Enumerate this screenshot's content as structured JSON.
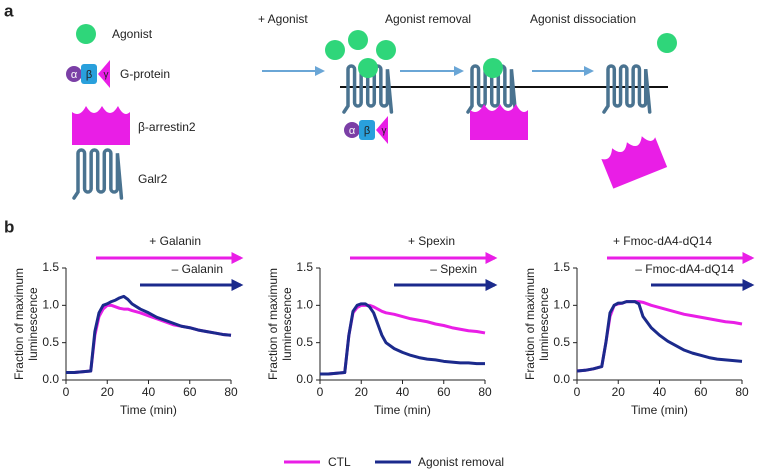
{
  "panel_a": {
    "label": "a",
    "legend_items": [
      "Agonist",
      "G-protein",
      "β-arrestin2",
      "Galr2"
    ],
    "steps": [
      "+ Agonist",
      "Agonist removal",
      "Agonist dissociation"
    ],
    "subunits": [
      "α",
      "β",
      "γ"
    ]
  },
  "panel_b": {
    "label": "b"
  },
  "chart_data": [
    {
      "type": "line",
      "annotations": [
        "+ Galanin",
        "– Galanin"
      ],
      "xlabel": "Time (min)",
      "ylabel": [
        "Fraction of maximum",
        "luminescence"
      ],
      "x": [
        0,
        4,
        8,
        12,
        14,
        16,
        18,
        20,
        22,
        24,
        26,
        28,
        30,
        32,
        36,
        40,
        44,
        48,
        52,
        56,
        60,
        64,
        68,
        72,
        76,
        80
      ],
      "series": [
        {
          "name": "CTL",
          "color": "#e91ee6",
          "values": [
            0.1,
            0.1,
            0.11,
            0.12,
            0.6,
            0.85,
            0.95,
            1.0,
            1.0,
            0.98,
            0.96,
            0.95,
            0.95,
            0.93,
            0.9,
            0.86,
            0.82,
            0.78,
            0.74,
            0.72,
            0.7,
            0.67,
            0.65,
            0.63,
            0.61,
            0.6
          ]
        },
        {
          "name": "Agonist removal",
          "color": "#1b2a8c",
          "values": [
            0.1,
            0.1,
            0.11,
            0.12,
            0.65,
            0.9,
            1.0,
            1.02,
            1.05,
            1.07,
            1.1,
            1.12,
            1.08,
            1.02,
            0.95,
            0.9,
            0.84,
            0.8,
            0.76,
            0.72,
            0.7,
            0.67,
            0.65,
            0.63,
            0.61,
            0.6
          ]
        }
      ],
      "xlim": [
        0,
        80
      ],
      "xticks": [
        0,
        20,
        40,
        60,
        80
      ],
      "ylim": [
        0,
        1.5
      ],
      "yticks": [
        {
          "value": 0,
          "label": "0.0"
        },
        0.5,
        {
          "value": 1,
          "label": "1.0"
        },
        1.5
      ]
    },
    {
      "type": "line",
      "annotations": [
        "+ Spexin",
        "– Spexin"
      ],
      "xlabel": "Time (min)",
      "ylabel": [
        "Fraction of maximum",
        "luminescence"
      ],
      "x": [
        0,
        4,
        8,
        12,
        14,
        16,
        18,
        20,
        22,
        24,
        26,
        28,
        30,
        32,
        36,
        40,
        44,
        48,
        52,
        56,
        60,
        64,
        68,
        72,
        76,
        80
      ],
      "series": [
        {
          "name": "CTL",
          "color": "#e91ee6",
          "values": [
            0.08,
            0.08,
            0.09,
            0.1,
            0.6,
            0.9,
            0.97,
            1.0,
            1.0,
            1.0,
            0.98,
            0.95,
            0.92,
            0.9,
            0.88,
            0.85,
            0.82,
            0.8,
            0.78,
            0.75,
            0.73,
            0.7,
            0.68,
            0.66,
            0.65,
            0.63
          ]
        },
        {
          "name": "Agonist removal",
          "color": "#1b2a8c",
          "values": [
            0.08,
            0.08,
            0.09,
            0.1,
            0.6,
            0.92,
            1.0,
            1.02,
            1.02,
            0.98,
            0.9,
            0.75,
            0.6,
            0.5,
            0.42,
            0.37,
            0.33,
            0.3,
            0.28,
            0.27,
            0.25,
            0.24,
            0.23,
            0.23,
            0.22,
            0.22
          ]
        }
      ],
      "xlim": [
        0,
        80
      ],
      "xticks": [
        0,
        20,
        40,
        60,
        80
      ],
      "ylim": [
        0,
        1.5
      ],
      "yticks": [
        {
          "value": 0,
          "label": "0.0"
        },
        0.5,
        {
          "value": 1,
          "label": "1.0"
        },
        1.5
      ]
    },
    {
      "type": "line",
      "annotations": [
        "+ Fmoc-dA4-dQ14",
        "– Fmoc-dA4-dQ14"
      ],
      "xlabel": "Time (min)",
      "ylabel": [
        "Fraction of maximum",
        "luminescence"
      ],
      "x": [
        0,
        4,
        8,
        12,
        14,
        16,
        18,
        20,
        22,
        24,
        26,
        28,
        30,
        32,
        36,
        40,
        44,
        48,
        52,
        56,
        60,
        64,
        68,
        72,
        76,
        80
      ],
      "series": [
        {
          "name": "CTL",
          "color": "#e91ee6",
          "values": [
            0.12,
            0.13,
            0.15,
            0.18,
            0.5,
            0.85,
            1.0,
            1.02,
            1.03,
            1.05,
            1.05,
            1.05,
            1.05,
            1.04,
            1.0,
            0.97,
            0.94,
            0.91,
            0.88,
            0.86,
            0.84,
            0.82,
            0.8,
            0.78,
            0.77,
            0.75
          ]
        },
        {
          "name": "Agonist removal",
          "color": "#1b2a8c",
          "values": [
            0.12,
            0.13,
            0.15,
            0.18,
            0.5,
            0.9,
            1.0,
            1.03,
            1.03,
            1.05,
            1.05,
            1.05,
            1.02,
            0.85,
            0.7,
            0.6,
            0.52,
            0.46,
            0.4,
            0.36,
            0.33,
            0.3,
            0.28,
            0.27,
            0.26,
            0.25
          ]
        }
      ],
      "xlim": [
        0,
        80
      ],
      "xticks": [
        0,
        20,
        40,
        60,
        80
      ],
      "ylim": [
        0,
        1.5
      ],
      "yticks": [
        {
          "value": 0,
          "label": "0.0"
        },
        0.5,
        {
          "value": 1,
          "label": "1.0"
        },
        1.5
      ]
    }
  ]
}
